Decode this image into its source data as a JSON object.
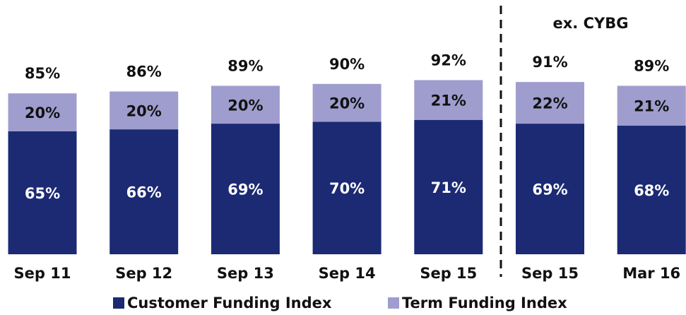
{
  "chart_data": {
    "type": "stacked_bar",
    "categories": [
      "Sep 11",
      "Sep 12",
      "Sep 13",
      "Sep 14",
      "Sep 15",
      "Sep 15",
      "Mar 16"
    ],
    "series": [
      {
        "name": "Customer Funding Index",
        "color": "#1b2a73",
        "values": [
          65,
          66,
          69,
          70,
          71,
          69,
          68
        ],
        "value_labels": [
          "65%",
          "66%",
          "69%",
          "70%",
          "71%",
          "69%",
          "68%"
        ]
      },
      {
        "name": "Term Funding Index",
        "color": "#9f9dce",
        "values": [
          20,
          20,
          20,
          20,
          21,
          22,
          21
        ],
        "value_labels": [
          "20%",
          "20%",
          "20%",
          "20%",
          "21%",
          "22%",
          "21%"
        ]
      }
    ],
    "totals": [
      85,
      86,
      89,
      90,
      92,
      91,
      89
    ],
    "total_labels": [
      "85%",
      "86%",
      "89%",
      "90%",
      "92%",
      "91%",
      "89%"
    ],
    "annotation": "ex. CYBG"
  }
}
